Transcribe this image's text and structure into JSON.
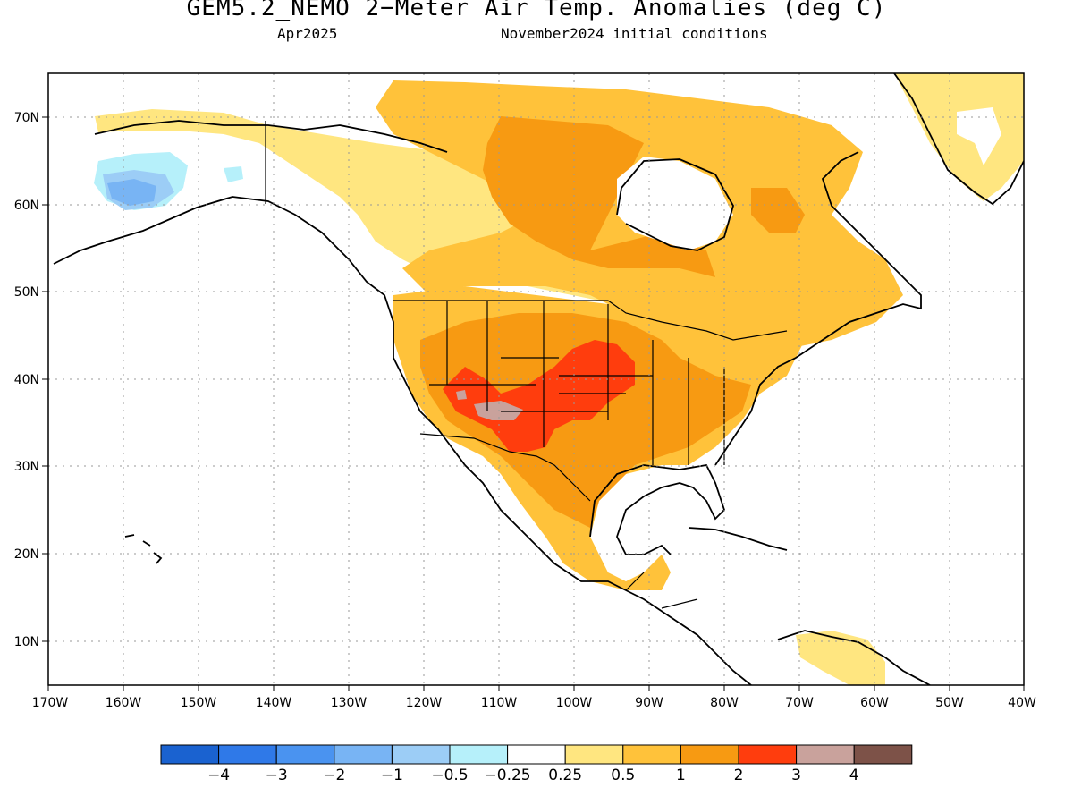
{
  "title": "GEM5.2_NEMO 2−Meter Air Temp. Anomalies (deg C)",
  "subtitle_left": "Apr2025",
  "subtitle_right": "November2024 initial conditions",
  "lat_labels": [
    "70N",
    "60N",
    "50N",
    "40N",
    "30N",
    "20N",
    "10N"
  ],
  "lon_labels": [
    "170W",
    "160W",
    "150W",
    "140W",
    "130W",
    "120W",
    "110W",
    "100W",
    "90W",
    "80W",
    "70W",
    "60W",
    "50W",
    "40W"
  ],
  "colorbar": {
    "colors": [
      "#1a62d0",
      "#2f79e8",
      "#4a93f0",
      "#78b4f4",
      "#9ccdf6",
      "#b6f0fa",
      "#ffffff",
      "#ffe680",
      "#ffc23a",
      "#f79a12",
      "#ff3d0d",
      "#c9a29c",
      "#7d5248"
    ],
    "labels": [
      "−4",
      "−3",
      "−2",
      "−1",
      "−0.5",
      "−0.25",
      "0.25",
      "0.5",
      "1",
      "2",
      "3",
      "4"
    ]
  },
  "colors": {
    "anomaly_0_25_0_5": "#ffe680",
    "anomaly_0_5_1": "#ffc23a",
    "anomaly_1_2": "#f79a12",
    "anomaly_2_3": "#ff3d0d",
    "anomaly_3_4": "#c9a29c",
    "anomaly_neg_0_25": "#b6f0fa",
    "anomaly_neg_0_5": "#9ccdf6",
    "anomaly_neg_1": "#78b4f4"
  }
}
